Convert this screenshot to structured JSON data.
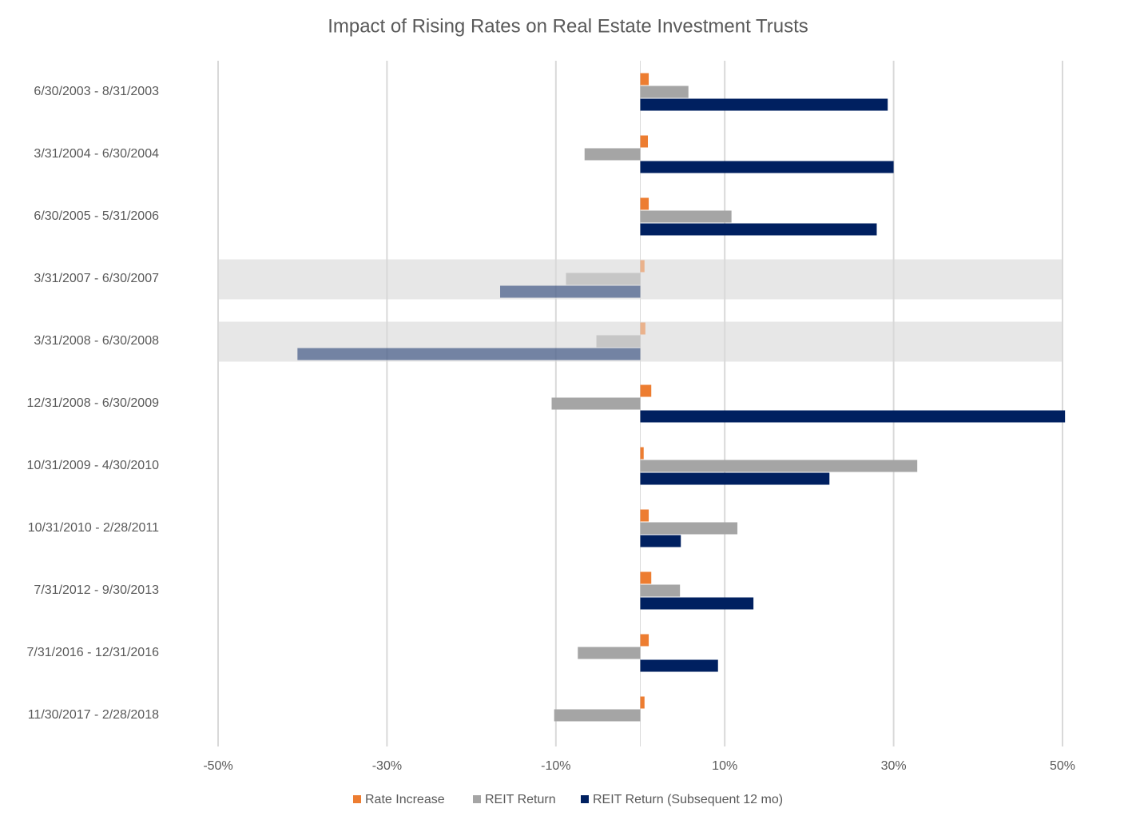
{
  "chart_data": {
    "type": "hbar",
    "title": "Impact of Rising Rates on Real Estate Investment Trusts",
    "categories": [
      "6/30/2003 - 8/31/2003",
      "3/31/2004 - 6/30/2004",
      "6/30/2005 - 5/31/2006",
      "3/31/2007 - 6/30/2007",
      "3/31/2008 - 6/30/2008",
      "12/31/2008 - 6/30/2009",
      "10/31/2009 - 4/30/2010",
      "10/31/2010 - 2/28/2011",
      "7/31/2012 - 9/30/2013",
      "7/31/2016 - 12/31/2016",
      "11/30/2017 - 2/28/2018"
    ],
    "series": [
      {
        "name": "Rate Increase",
        "color": "#ed7d31",
        "values": [
          1.0,
          0.9,
          1.0,
          0.5,
          0.6,
          1.3,
          0.4,
          1.0,
          1.3,
          1.0,
          0.5
        ]
      },
      {
        "name": "REIT Return",
        "color": "#a5a5a5",
        "values": [
          5.7,
          -6.6,
          10.8,
          -8.8,
          -5.2,
          -10.5,
          32.8,
          11.5,
          4.7,
          -7.4,
          -10.2
        ]
      },
      {
        "name": "REIT Return (Subsequent 12 mo)",
        "color": "#002060",
        "values": [
          29.3,
          30.0,
          28.0,
          -16.6,
          -40.6,
          50.3,
          22.4,
          4.8,
          13.4,
          9.2,
          null
        ]
      }
    ],
    "xlim": [
      -50,
      50
    ],
    "xticks": [
      {
        "value": -50,
        "label": "-50%"
      },
      {
        "value": -30,
        "label": "-30%"
      },
      {
        "value": -10,
        "label": "-10%"
      },
      {
        "value": 10,
        "label": "10%"
      },
      {
        "value": 30,
        "label": "30%"
      },
      {
        "value": 50,
        "label": "50%"
      }
    ],
    "grid": true,
    "shaded": [
      3,
      4
    ],
    "legend": "bottom"
  }
}
